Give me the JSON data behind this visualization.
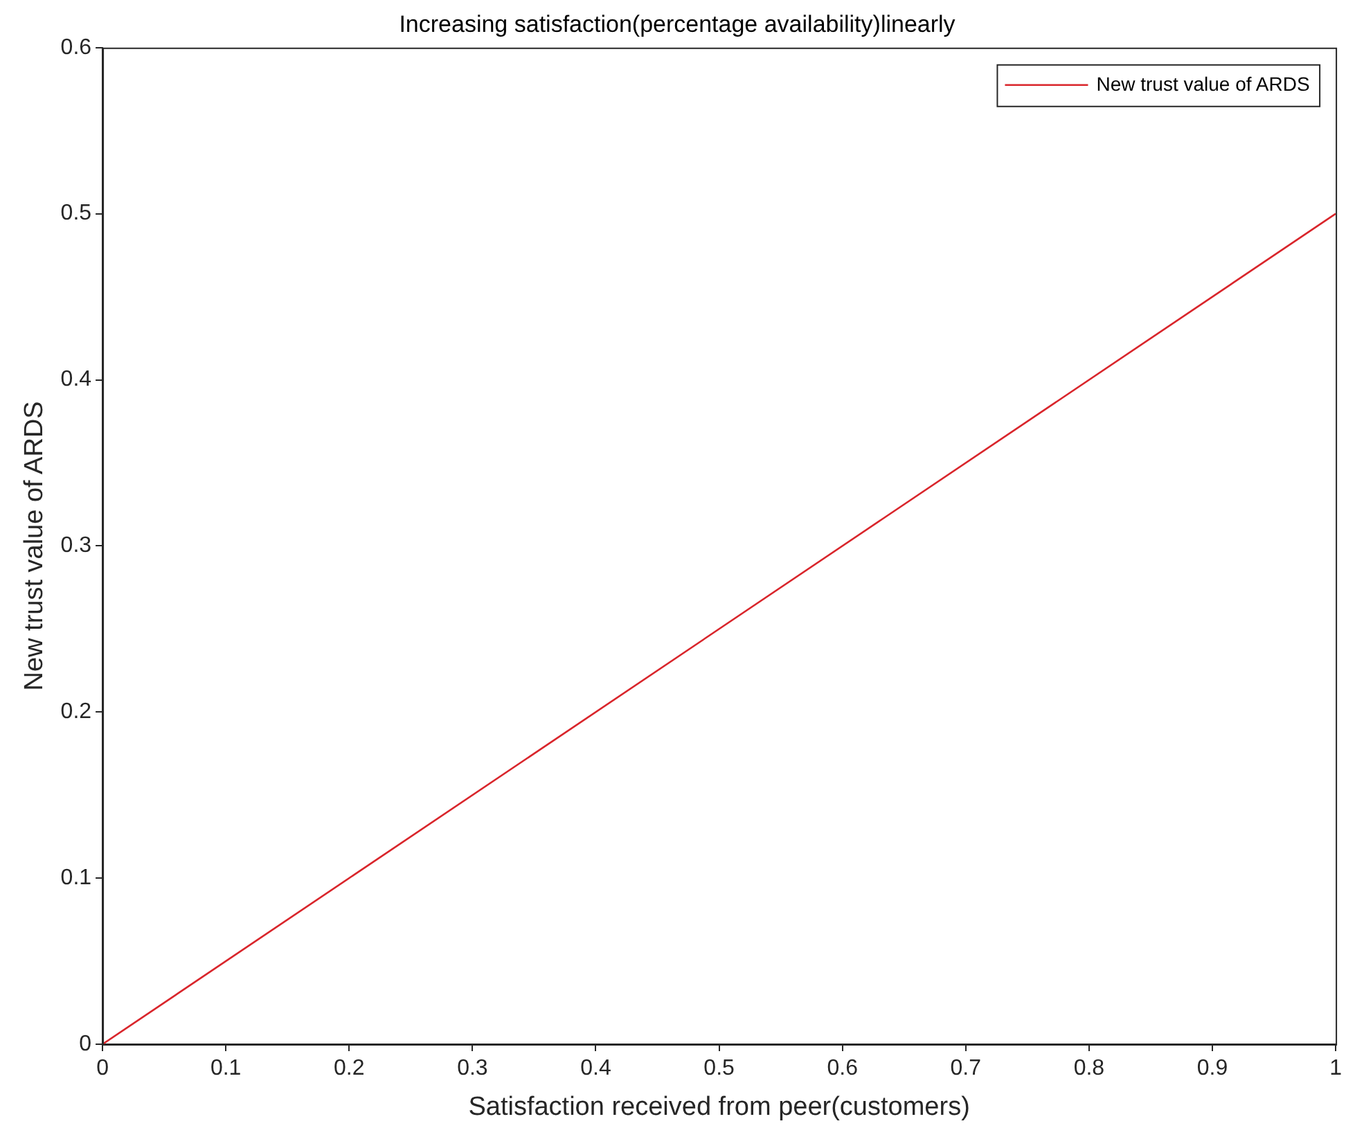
{
  "chart_data": {
    "type": "line",
    "title": "Increasing satisfaction(percentage availability)linearly",
    "xlabel": "Satisfaction received from peer(customers)",
    "ylabel": "New trust value of ARDS",
    "x": [
      0,
      1
    ],
    "series": [
      {
        "name": "New trust value of ARDS",
        "color": "#d9252b",
        "values": [
          0,
          0.5
        ]
      }
    ],
    "xlim": [
      0,
      1
    ],
    "xticks": [
      0,
      0.1,
      0.2,
      0.3,
      0.4,
      0.5,
      0.6,
      0.7,
      0.8,
      0.9,
      1
    ],
    "ylim": [
      0,
      0.6
    ],
    "yticks": [
      0,
      0.1,
      0.2,
      0.3,
      0.4,
      0.5,
      0.6
    ],
    "grid": false,
    "legend": "top right",
    "marker": "none",
    "line_style": "solid"
  }
}
